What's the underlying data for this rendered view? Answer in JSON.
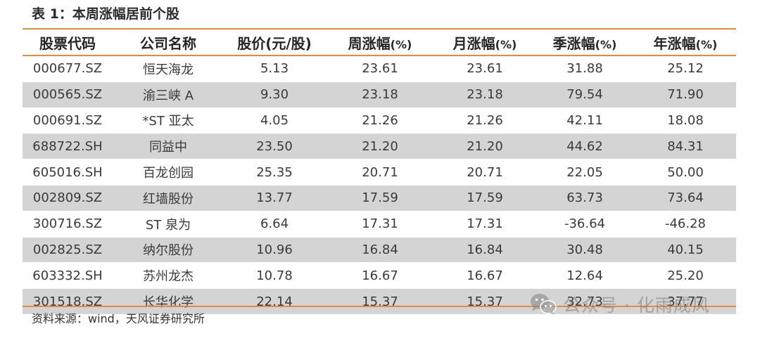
{
  "title": "表 1：本周涨幅居前个股",
  "table": {
    "headers": [
      {
        "main": "股票代码",
        "pct": ""
      },
      {
        "main": "公司名称",
        "pct": ""
      },
      {
        "main": "股价(元/股)",
        "pct": ""
      },
      {
        "main": "周涨幅",
        "pct": "(%)"
      },
      {
        "main": "月涨幅",
        "pct": "(%)"
      },
      {
        "main": "季涨幅",
        "pct": "(%)"
      },
      {
        "main": "年涨幅",
        "pct": "(%)"
      }
    ],
    "rows": [
      [
        "000677.SZ",
        "恒天海龙",
        "5.13",
        "23.61",
        "23.61",
        "31.88",
        "25.12"
      ],
      [
        "000565.SZ",
        "渝三峡 A",
        "9.30",
        "23.18",
        "23.18",
        "79.54",
        "71.90"
      ],
      [
        "000691.SZ",
        "*ST 亚太",
        "4.05",
        "21.26",
        "21.26",
        "42.11",
        "18.08"
      ],
      [
        "688722.SH",
        "同益中",
        "23.50",
        "21.20",
        "21.20",
        "44.62",
        "84.31"
      ],
      [
        "605016.SH",
        "百龙创园",
        "25.35",
        "20.71",
        "20.71",
        "22.05",
        "50.00"
      ],
      [
        "002809.SZ",
        "红墙股份",
        "13.77",
        "17.59",
        "17.59",
        "63.73",
        "73.64"
      ],
      [
        "300716.SZ",
        "ST 泉为",
        "6.64",
        "17.31",
        "17.31",
        "-36.64",
        "-46.28"
      ],
      [
        "002825.SZ",
        "纳尔股份",
        "10.96",
        "16.84",
        "16.84",
        "30.48",
        "40.15"
      ],
      [
        "603332.SH",
        "苏州龙杰",
        "10.78",
        "16.67",
        "16.67",
        "12.64",
        "25.20"
      ],
      [
        "301518.SZ",
        "长华化学",
        "22.14",
        "15.37",
        "15.37",
        "32.73",
        "37.77"
      ]
    ]
  },
  "source": "资料来源：wind，天风证券研究所",
  "watermark": {
    "text": "公众号 · 化雨成风",
    "icon": "wechat-icon"
  },
  "colors": {
    "accent": "#e8883a",
    "row_shade": "#d4d4d4"
  }
}
